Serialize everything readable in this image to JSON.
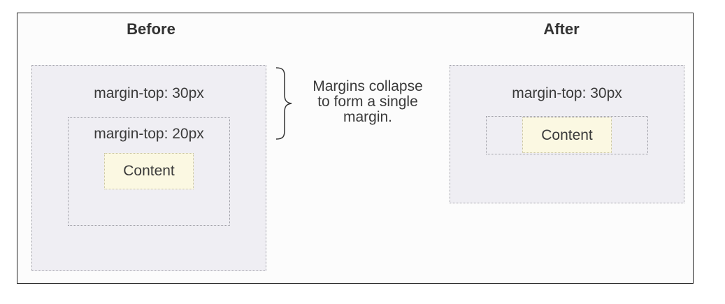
{
  "before": {
    "heading": "Before",
    "outer_label": "margin-top: 30px",
    "inner_label": "margin-top: 20px",
    "content_label": "Content"
  },
  "after": {
    "heading": "After",
    "outer_label": "margin-top: 30px",
    "content_label": "Content"
  },
  "note": {
    "lines": [
      "Margins collapse",
      "to form a single",
      "margin."
    ]
  },
  "colors": {
    "box_fill": "#efeef3",
    "content_fill": "#fbf8e2",
    "text": "#3a3a3a"
  }
}
